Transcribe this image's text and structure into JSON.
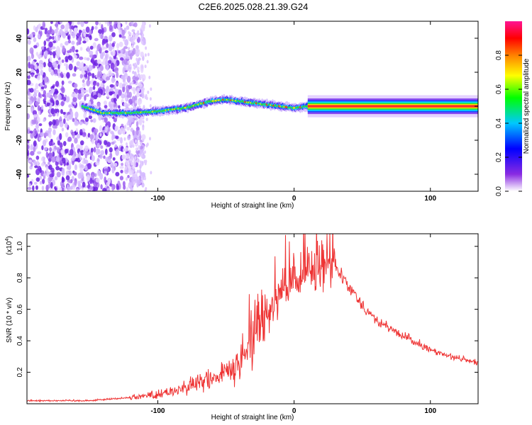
{
  "title": "C2E6.2025.028.21.39.G24",
  "chart_data": [
    {
      "type": "heatmap",
      "xlabel": "Height of straight line (km)",
      "ylabel": "Frequency (Hz)",
      "xlim": [
        -196,
        135
      ],
      "ylim": [
        -50,
        50
      ],
      "x_ticks": [
        -100,
        0,
        100
      ],
      "y_ticks": [
        -40,
        -20,
        0,
        20,
        40
      ],
      "colorbar": {
        "label": "Normalized spectral amplitude",
        "range": [
          0,
          1
        ],
        "ticks": [
          "0.0",
          "0.2",
          "0.4",
          "0.6",
          "0.8"
        ],
        "stops": [
          "#ffffff",
          "#8a2be2",
          "#0000ff",
          "#00c8ff",
          "#00ff00",
          "#ffff00",
          "#ff8000",
          "#ff0000",
          "#ff1493"
        ]
      },
      "ridge": {
        "x": [
          -155,
          -140,
          -120,
          -100,
          -80,
          -60,
          -50,
          -40,
          -20,
          0,
          10,
          135
        ],
        "y": [
          0,
          -4,
          -4,
          -3,
          -1,
          3,
          4,
          3,
          1,
          -1,
          0,
          0
        ]
      },
      "noise_region_x": [
        -196,
        -110
      ],
      "strong_tone_x": [
        10,
        135
      ]
    },
    {
      "type": "line",
      "xlabel": "Height of straight line (km)",
      "ylabel": "SNR (10 * v/v)",
      "y_multiplier": "(x10",
      "y_multiplier_exp": "4",
      "xlim": [
        -196,
        135
      ],
      "ylim": [
        0,
        1.08
      ],
      "x_ticks": [
        -100,
        0,
        100
      ],
      "y_ticks": [
        0.2,
        0.4,
        0.6,
        0.8,
        1.0
      ],
      "series": [
        {
          "color": "#ee3333",
          "envelope": {
            "x": [
              -196,
              -150,
              -120,
              -100,
              -80,
              -60,
              -45,
              -35,
              -30,
              -25,
              -20,
              -15,
              -10,
              -5,
              0,
              5,
              10,
              15,
              20,
              25,
              30,
              40,
              50,
              60,
              80,
              100,
              120,
              135
            ],
            "y": [
              0.02,
              0.02,
              0.04,
              0.06,
              0.1,
              0.16,
              0.22,
              0.3,
              0.48,
              0.55,
              0.6,
              0.65,
              0.7,
              0.73,
              0.75,
              0.8,
              0.88,
              0.85,
              0.85,
              0.88,
              0.9,
              0.75,
              0.63,
              0.53,
              0.43,
              0.34,
              0.29,
              0.26
            ]
          }
        }
      ]
    }
  ]
}
